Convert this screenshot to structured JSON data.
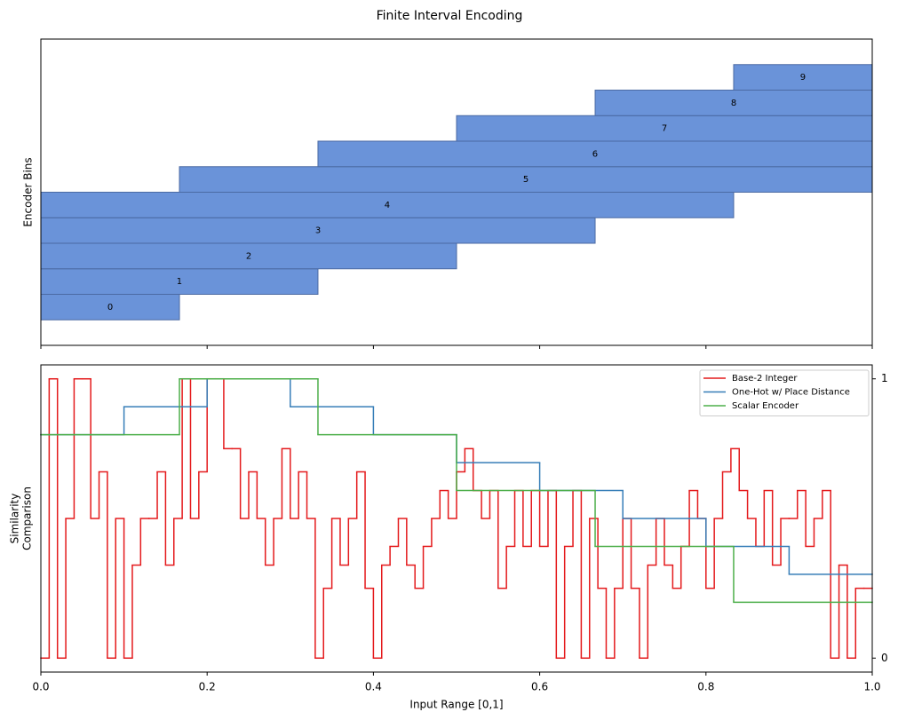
{
  "title": "Finite Interval Encoding",
  "chart_data": [
    {
      "type": "range_bar",
      "ylabel": "Encoder Bins",
      "categories": [
        "0",
        "1",
        "2",
        "3",
        "4",
        "5",
        "6",
        "7",
        "8",
        "9"
      ],
      "starts": [
        0,
        0,
        0,
        0,
        0,
        0.1667,
        0.3333,
        0.5,
        0.6667,
        0.8333
      ],
      "ends": [
        0.1667,
        0.3333,
        0.5,
        0.6667,
        0.8333,
        1,
        1,
        1,
        1,
        1
      ],
      "color": "#6a93d9",
      "edgecolor": "#4b6aa3",
      "xlim": [
        0,
        1
      ],
      "ylim": [
        -1,
        11
      ],
      "xticks": [
        0,
        0.2,
        0.4,
        0.6,
        0.8,
        1
      ]
    },
    {
      "type": "step",
      "xlabel": "Input Range [0,1]",
      "ylabel": [
        "Similarity",
        "Comparison"
      ],
      "xlim": [
        0,
        1
      ],
      "ylim": [
        -0.05,
        1.05
      ],
      "xticks": [
        {
          "value": 0,
          "label": "0.0"
        },
        {
          "value": 0.2,
          "label": "0.2"
        },
        {
          "value": 0.4,
          "label": "0.4"
        },
        {
          "value": 0.6,
          "label": "0.6"
        },
        {
          "value": 0.8,
          "label": "0.8"
        },
        {
          "value": 1,
          "label": "1.0"
        }
      ],
      "yticks": [
        0,
        1
      ],
      "legend": "upper right",
      "series": [
        {
          "name": "Base-2 Integer",
          "color": "#e41a1c",
          "x": [
            0,
            0.01,
            0.02,
            0.03,
            0.04,
            0.05,
            0.06,
            0.07,
            0.08,
            0.09,
            0.1,
            0.11,
            0.12,
            0.13,
            0.14,
            0.15,
            0.16,
            0.17,
            0.18,
            0.19,
            0.2,
            0.21,
            0.22,
            0.23,
            0.24,
            0.25,
            0.26,
            0.27,
            0.28,
            0.29,
            0.3,
            0.31,
            0.32,
            0.33,
            0.34,
            0.35,
            0.36,
            0.37,
            0.38,
            0.39,
            0.4,
            0.41,
            0.42,
            0.43,
            0.44,
            0.45,
            0.46,
            0.47,
            0.48,
            0.49,
            0.5,
            0.51,
            0.52,
            0.53,
            0.54,
            0.55,
            0.56,
            0.57,
            0.58,
            0.59,
            0.6,
            0.61,
            0.62,
            0.63,
            0.64,
            0.65,
            0.66,
            0.67,
            0.68,
            0.69,
            0.7,
            0.71,
            0.72,
            0.73,
            0.74,
            0.75,
            0.76,
            0.77,
            0.78,
            0.79,
            0.8,
            0.81,
            0.82,
            0.83,
            0.84,
            0.85,
            0.86,
            0.87,
            0.88,
            0.89,
            0.9,
            0.91,
            0.92,
            0.93,
            0.94,
            0.95,
            0.96,
            0.97,
            0.98,
            0.99
          ],
          "values": [
            0,
            1,
            0,
            0.5,
            1,
            1,
            0.5,
            0.667,
            0,
            0.5,
            0,
            0.333,
            0.5,
            0.5,
            0.667,
            0.333,
            0.5,
            1,
            0.5,
            0.667,
            1,
            1,
            0.75,
            0.75,
            0.5,
            0.667,
            0.5,
            0.333,
            0.5,
            0.75,
            0.5,
            0.667,
            0.5,
            0,
            0.25,
            0.5,
            0.333,
            0.5,
            0.667,
            0.25,
            0,
            0.333,
            0.4,
            0.5,
            0.333,
            0.25,
            0.4,
            0.5,
            0.6,
            0.5,
            0.667,
            0.75,
            0.6,
            0.5,
            0.6,
            0.25,
            0.4,
            0.6,
            0.4,
            0.6,
            0.4,
            0.6,
            0,
            0.4,
            0.6,
            0,
            0.5,
            0.25,
            0,
            0.25,
            0.5,
            0.25,
            0,
            0.333,
            0.5,
            0.333,
            0.25,
            0.4,
            0.6,
            0.5,
            0.25,
            0.5,
            0.667,
            0.75,
            0.6,
            0.5,
            0.4,
            0.6,
            0.333,
            0.5,
            0.5,
            0.6,
            0.4,
            0.5,
            0.6,
            0,
            0.333,
            0,
            0.25,
            0.25
          ]
        },
        {
          "name": "One-Hot w/ Place Distance",
          "color": "#377eb8",
          "x": [
            0,
            0.1,
            0.2,
            0.3,
            0.4,
            0.5,
            0.6,
            0.7,
            0.8,
            0.9
          ],
          "values": [
            0.8,
            0.9,
            1,
            0.9,
            0.8,
            0.7,
            0.6,
            0.5,
            0.4,
            0.3
          ]
        },
        {
          "name": "Scalar Encoder",
          "color": "#4daf4a",
          "x": [
            0,
            0.1667,
            0.3333,
            0.5,
            0.6667,
            0.8333
          ],
          "values": [
            0.8,
            1,
            0.8,
            0.6,
            0.4,
            0.2
          ]
        }
      ]
    }
  ]
}
